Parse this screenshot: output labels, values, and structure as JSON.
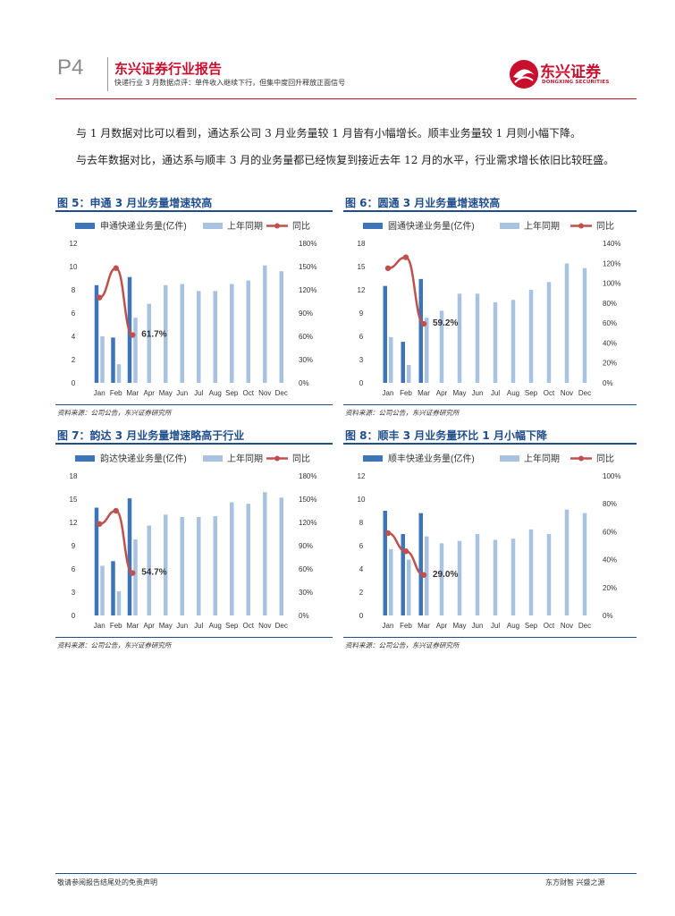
{
  "header": {
    "page": "P4",
    "report_title": "东兴证券行业报告",
    "subtitle": "快递行业 3 月数据点评：单件收入继续下行，但集中度回升释放正面信号",
    "logo_cn": "东兴证券",
    "logo_en": "DONGXING SECURITIES"
  },
  "body": {
    "paragraph1": "与 1 月数据对比可以看到，通达系公司 3 月业务量较 1 月皆有小幅增长。顺丰业务量较 1 月则小幅下降。",
    "paragraph2": "与去年数据对比，通达系与顺丰 3 月的业务量都已经恢复到接近去年 12 月的水平，行业需求增长依旧比较旺盛。"
  },
  "figures": [
    {
      "title": "图 5：申通 3 月业务量增速较高",
      "source": "资料来源：公司公告，东兴证券研究所"
    },
    {
      "title": "图 6：圆通 3 月业务量增速较高",
      "source": "资料来源：公司公告，东兴证券研究所"
    },
    {
      "title": "图 7：韵达 3 月业务量增速略高于行业",
      "source": "资料来源：公司公告，东兴证券研究所"
    },
    {
      "title": "图 8：顺丰 3 月业务量环比 1 月小幅下降",
      "source": "资料来源：公司公告，东兴证券研究所"
    }
  ],
  "colors": {
    "current": "#3e74b8",
    "last_year": "#a9c2e0",
    "yoy": "#c0504d",
    "accent": "#c8102e",
    "figure_title": "#1f4e8c"
  },
  "chart_data": [
    {
      "type": "bar",
      "categories": [
        "Jan",
        "Feb",
        "Mar",
        "Apr",
        "May",
        "Jun",
        "Jul",
        "Aug",
        "Sep",
        "Oct",
        "Nov",
        "Dec"
      ],
      "series": [
        {
          "name": "申通快递业务量(亿件)",
          "axis": "left",
          "values": [
            8.4,
            3.9,
            9.1,
            null,
            null,
            null,
            null,
            null,
            null,
            null,
            null,
            null
          ]
        },
        {
          "name": "上年同期",
          "axis": "left",
          "values": [
            4.0,
            1.6,
            5.6,
            6.8,
            8.4,
            8.5,
            7.9,
            7.9,
            8.5,
            8.8,
            10.1,
            9.6
          ]
        },
        {
          "name": "同比",
          "axis": "right",
          "type": "line",
          "values": [
            110,
            148,
            61.7,
            null,
            null,
            null,
            null,
            null,
            null,
            null,
            null,
            null
          ]
        }
      ],
      "yticks_left": [
        "0",
        "2",
        "4",
        "6",
        "8",
        "10",
        "12"
      ],
      "yticks_right": [
        "0%",
        "30%",
        "60%",
        "90%",
        "120%",
        "150%",
        "180%"
      ],
      "ylim": [
        0,
        12
      ],
      "y2lim": [
        0,
        180
      ],
      "annotation": "61.7%",
      "legend": "top"
    },
    {
      "type": "bar",
      "categories": [
        "Jan",
        "Feb",
        "Mar",
        "Apr",
        "May",
        "Jun",
        "Jul",
        "Aug",
        "Sep",
        "Oct",
        "Nov",
        "Dec"
      ],
      "series": [
        {
          "name": "圆通快递业务量(亿件)",
          "axis": "left",
          "values": [
            12.5,
            5.3,
            13.4,
            null,
            null,
            null,
            null,
            null,
            null,
            null,
            null,
            null
          ]
        },
        {
          "name": "上年同期",
          "axis": "left",
          "values": [
            5.9,
            2.3,
            8.4,
            9.3,
            11.5,
            11.5,
            10.4,
            10.7,
            12.0,
            13.0,
            15.4,
            14.8
          ]
        },
        {
          "name": "同比",
          "axis": "right",
          "type": "line",
          "values": [
            115,
            126,
            59.2,
            null,
            null,
            null,
            null,
            null,
            null,
            null,
            null,
            null
          ]
        }
      ],
      "yticks_left": [
        "0",
        "3",
        "6",
        "9",
        "12",
        "15",
        "18"
      ],
      "yticks_right": [
        "0%",
        "20%",
        "40%",
        "60%",
        "80%",
        "100%",
        "120%",
        "140%"
      ],
      "ylim": [
        0,
        18
      ],
      "y2lim": [
        0,
        140
      ],
      "annotation": "59.2%",
      "legend": "top"
    },
    {
      "type": "bar",
      "categories": [
        "Jan",
        "Feb",
        "Mar",
        "Apr",
        "May",
        "Jun",
        "Jul",
        "Aug",
        "Sep",
        "Oct",
        "Nov",
        "Dec"
      ],
      "series": [
        {
          "name": "韵达快递业务量(亿件)",
          "axis": "left",
          "values": [
            13.9,
            7.0,
            15.1,
            null,
            null,
            null,
            null,
            null,
            null,
            null,
            null,
            null
          ]
        },
        {
          "name": "上年同期",
          "axis": "left",
          "values": [
            6.4,
            3.1,
            9.8,
            11.6,
            13.0,
            12.7,
            12.7,
            12.8,
            14.6,
            14.4,
            15.9,
            15.2
          ]
        },
        {
          "name": "同比",
          "axis": "right",
          "type": "line",
          "values": [
            118,
            135,
            54.7,
            null,
            null,
            null,
            null,
            null,
            null,
            null,
            null,
            null
          ]
        }
      ],
      "yticks_left": [
        "0",
        "3",
        "6",
        "9",
        "12",
        "15",
        "18"
      ],
      "yticks_right": [
        "0%",
        "30%",
        "60%",
        "90%",
        "120%",
        "150%",
        "180%"
      ],
      "ylim": [
        0,
        18
      ],
      "y2lim": [
        0,
        180
      ],
      "annotation": "54.7%",
      "legend": "top"
    },
    {
      "type": "bar",
      "categories": [
        "Jan",
        "Feb",
        "Mar",
        "Apr",
        "May",
        "Jun",
        "Jul",
        "Aug",
        "Sep",
        "Oct",
        "Nov",
        "Dec"
      ],
      "series": [
        {
          "name": "顺丰快递业务量(亿件)",
          "axis": "left",
          "values": [
            9.0,
            7.0,
            8.8,
            null,
            null,
            null,
            null,
            null,
            null,
            null,
            null,
            null
          ]
        },
        {
          "name": "上年同期",
          "axis": "left",
          "values": [
            5.7,
            4.8,
            6.8,
            6.2,
            6.4,
            7.0,
            6.5,
            6.6,
            7.4,
            7.0,
            9.1,
            8.8
          ]
        },
        {
          "name": "同比",
          "axis": "right",
          "type": "line",
          "values": [
            59,
            46,
            29.0,
            null,
            null,
            null,
            null,
            null,
            null,
            null,
            null,
            null
          ]
        }
      ],
      "yticks_left": [
        "0",
        "2",
        "4",
        "6",
        "8",
        "10",
        "12"
      ],
      "yticks_right": [
        "0%",
        "20%",
        "40%",
        "60%",
        "80%",
        "100%"
      ],
      "ylim": [
        0,
        12
      ],
      "y2lim": [
        0,
        100
      ],
      "annotation": "29.0%",
      "legend": "top"
    }
  ],
  "footer": {
    "disclaimer": "敬请参阅报告结尾处的免责声明",
    "slogan": "东方财智  兴盛之源"
  }
}
